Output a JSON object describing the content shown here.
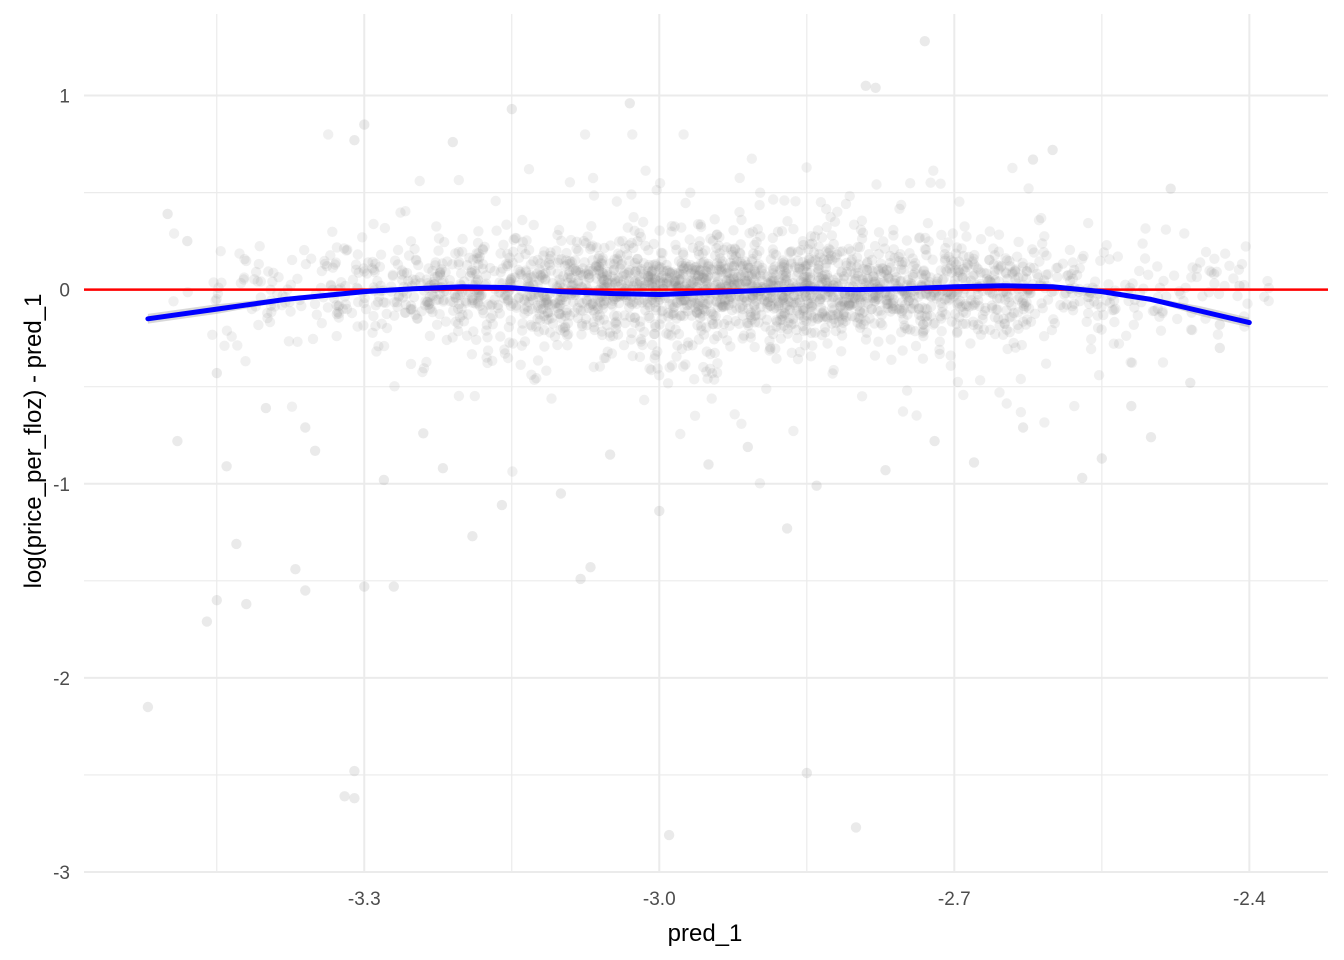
{
  "chart_data": {
    "type": "scatter",
    "title": "",
    "xlabel": "pred_1",
    "ylabel": "log(price_per_floz) - pred_1",
    "xlim": [
      -3.585,
      -2.32
    ],
    "ylim": [
      -3.0,
      1.42
    ],
    "x_ticks": [
      -3.3,
      -3.0,
      -2.7,
      -2.4
    ],
    "x_tick_labels": [
      "-3.3",
      "-3.0",
      "-2.7",
      "-2.4"
    ],
    "y_ticks": [
      -3,
      -2,
      -1,
      0,
      1
    ],
    "y_tick_labels": [
      "-3",
      "-2",
      "-1",
      "0",
      "1"
    ],
    "grid": true,
    "point_color": "#808080",
    "point_opacity": 0.12,
    "reference_line": {
      "y": 0,
      "color": "#ff0000"
    },
    "smooth_color": "#0000ff",
    "smooth_ribbon_color": "#bebebe",
    "outliers": [
      {
        "x": -3.52,
        "y": -2.15
      },
      {
        "x": -3.43,
        "y": -1.31
      },
      {
        "x": -3.45,
        "y": -1.6
      },
      {
        "x": -3.46,
        "y": -1.71
      },
      {
        "x": -3.42,
        "y": -1.62
      },
      {
        "x": -3.37,
        "y": -1.44
      },
      {
        "x": -3.36,
        "y": -1.55
      },
      {
        "x": -3.32,
        "y": -2.61
      },
      {
        "x": -3.31,
        "y": -2.48
      },
      {
        "x": -3.31,
        "y": -2.62
      },
      {
        "x": -3.3,
        "y": -1.53
      },
      {
        "x": -3.27,
        "y": -1.53
      },
      {
        "x": -3.19,
        "y": -1.27
      },
      {
        "x": -3.08,
        "y": -1.49
      },
      {
        "x": -3.07,
        "y": -1.43
      },
      {
        "x": -2.85,
        "y": -2.49
      },
      {
        "x": -2.99,
        "y": -2.81
      },
      {
        "x": -2.8,
        "y": -2.77
      },
      {
        "x": -2.87,
        "y": -1.23
      },
      {
        "x": -3.0,
        "y": -1.14
      },
      {
        "x": -3.49,
        "y": -0.78
      },
      {
        "x": -3.45,
        "y": -0.43
      },
      {
        "x": -3.44,
        "y": -0.91
      },
      {
        "x": -3.5,
        "y": 0.39
      },
      {
        "x": -3.48,
        "y": 0.25
      },
      {
        "x": -3.3,
        "y": 0.85
      },
      {
        "x": -3.31,
        "y": 0.77
      },
      {
        "x": -3.21,
        "y": 0.76
      },
      {
        "x": -3.15,
        "y": 0.93
      },
      {
        "x": -3.03,
        "y": 0.96
      },
      {
        "x": -2.73,
        "y": 1.28
      },
      {
        "x": -2.79,
        "y": 1.05
      },
      {
        "x": -2.78,
        "y": 1.04
      },
      {
        "x": -2.41,
        "y": 0.02
      },
      {
        "x": -2.43,
        "y": -0.18
      },
      {
        "x": -2.43,
        "y": -0.3
      },
      {
        "x": -2.46,
        "y": -0.48
      },
      {
        "x": -2.48,
        "y": 0.52
      },
      {
        "x": -2.57,
        "y": -0.97
      },
      {
        "x": -2.6,
        "y": 0.72
      },
      {
        "x": -2.55,
        "y": -0.87
      },
      {
        "x": -2.63,
        "y": -0.71
      },
      {
        "x": -2.62,
        "y": 0.67
      },
      {
        "x": -3.4,
        "y": -0.61
      },
      {
        "x": -3.36,
        "y": -0.71
      },
      {
        "x": -3.35,
        "y": -0.83
      },
      {
        "x": -3.28,
        "y": -0.98
      },
      {
        "x": -3.24,
        "y": -0.74
      },
      {
        "x": -3.22,
        "y": -0.92
      },
      {
        "x": -3.16,
        "y": -1.11
      },
      {
        "x": -3.1,
        "y": -1.05
      },
      {
        "x": -3.05,
        "y": -0.85
      },
      {
        "x": -2.95,
        "y": -0.9
      },
      {
        "x": -2.91,
        "y": -0.81
      },
      {
        "x": -2.84,
        "y": -1.01
      },
      {
        "x": -2.77,
        "y": -0.93
      },
      {
        "x": -2.72,
        "y": -0.78
      },
      {
        "x": -2.68,
        "y": -0.89
      },
      {
        "x": -2.52,
        "y": -0.6
      },
      {
        "x": -2.5,
        "y": -0.76
      }
    ],
    "smooth_line": {
      "x": [
        -3.52,
        -3.45,
        -3.38,
        -3.3,
        -3.25,
        -3.2,
        -3.15,
        -3.1,
        -3.05,
        -3.0,
        -2.95,
        -2.9,
        -2.85,
        -2.8,
        -2.75,
        -2.7,
        -2.65,
        -2.6,
        -2.55,
        -2.5,
        -2.45,
        -2.4
      ],
      "y": [
        -0.15,
        -0.1,
        -0.05,
        -0.01,
        0.005,
        0.015,
        0.01,
        -0.01,
        -0.02,
        -0.025,
        -0.015,
        -0.005,
        0.005,
        0.0,
        0.005,
        0.015,
        0.02,
        0.015,
        -0.01,
        -0.05,
        -0.11,
        -0.17
      ]
    }
  }
}
